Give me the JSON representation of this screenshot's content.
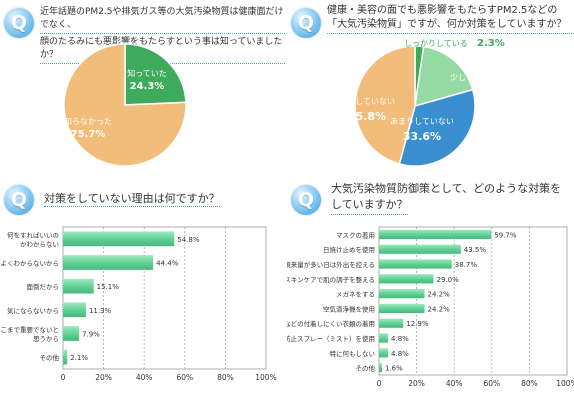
{
  "q1": {
    "badge": "Q",
    "line1": "近年話題のPM2.5や排気ガス等の大気汚染物質は健康面だけでなく、",
    "line2": "顔のたるみにも悪影響をもたらすという事は知っていましたか？"
  },
  "q2": {
    "badge": "Q",
    "line1": "健康・美容の面でも悪影響をもたらすPM2.5などの",
    "line2": "「大気汚染物質」ですが、何か対策をしていますか？"
  },
  "q3": {
    "badge": "Q",
    "line1": "対策をしていない理由は何ですか？"
  },
  "q4": {
    "badge": "Q",
    "line1": "大気汚染物質防御策として、どのような対策を",
    "line2": "していますか？"
  },
  "colors": {
    "green": "#3daa5c",
    "orange": "#f2bd7a",
    "light_green": "#95d9a4",
    "blue": "#3a8fd0",
    "bar": "#6dd3a0",
    "badge": "#3a9fdc"
  },
  "chart_data": [
    {
      "type": "pie",
      "slices": [
        {
          "label": "知っていた",
          "value": 24.3,
          "text": "24.3%",
          "color": "#3daa5c"
        },
        {
          "label": "知らなかった",
          "value": 75.7,
          "text": "75.7%",
          "color": "#f2bd7a"
        }
      ]
    },
    {
      "type": "pie",
      "slices": [
        {
          "label": "しっかりしている",
          "value": 2.3,
          "text": "2.3%",
          "color": "#3daa5c"
        },
        {
          "label": "少ししている",
          "value": 18.3,
          "text": "18.3%",
          "color": "#95d9a4"
        },
        {
          "label": "あまりしていない",
          "value": 33.6,
          "text": "33.6%",
          "color": "#3a8fd0"
        },
        {
          "label": "特にしていない",
          "value": 45.8,
          "text": "45.8%",
          "color": "#f2bd7a"
        }
      ]
    },
    {
      "type": "bar",
      "orientation": "horizontal",
      "categories": [
        "何をすればいいのかわからない",
        "実際よくわからないから",
        "面倒だから",
        "気にならないから",
        "そこまで重要でないと思うから",
        "その他"
      ],
      "values": [
        54.8,
        44.4,
        15.1,
        11.3,
        7.9,
        2.1
      ],
      "value_labels": [
        "54.8%",
        "44.4%",
        "15.1%",
        "11.3%",
        "7.9%",
        "2.1%"
      ],
      "xlim": [
        0,
        100
      ],
      "ticks": [
        "0",
        "20%",
        "40%",
        "60%",
        "80%",
        "100%"
      ],
      "grid": true
    },
    {
      "type": "bar",
      "orientation": "horizontal",
      "categories": [
        "マスクの着用",
        "日焼け止めを使用",
        "飛来量が多い日は外出を控える",
        "スキンケアで肌の調子を整える",
        "メガネをする",
        "空気清浄機を使用",
        "花粉などの付着しにくい衣類の着用",
        "付着防止スプレー（ミスト）を使用",
        "特に何もしない",
        "その他"
      ],
      "values": [
        59.7,
        43.5,
        38.7,
        29.0,
        24.2,
        24.2,
        12.9,
        4.8,
        4.8,
        1.6
      ],
      "value_labels": [
        "59.7%",
        "43.5%",
        "38.7%",
        "29.0%",
        "24.2%",
        "24.2%",
        "12.9%",
        "4.8%",
        "4.8%",
        "1.6%"
      ],
      "xlim": [
        0,
        100
      ],
      "ticks": [
        "0",
        "20%",
        "40%",
        "60%",
        "80%",
        "100%"
      ],
      "grid": true
    }
  ]
}
